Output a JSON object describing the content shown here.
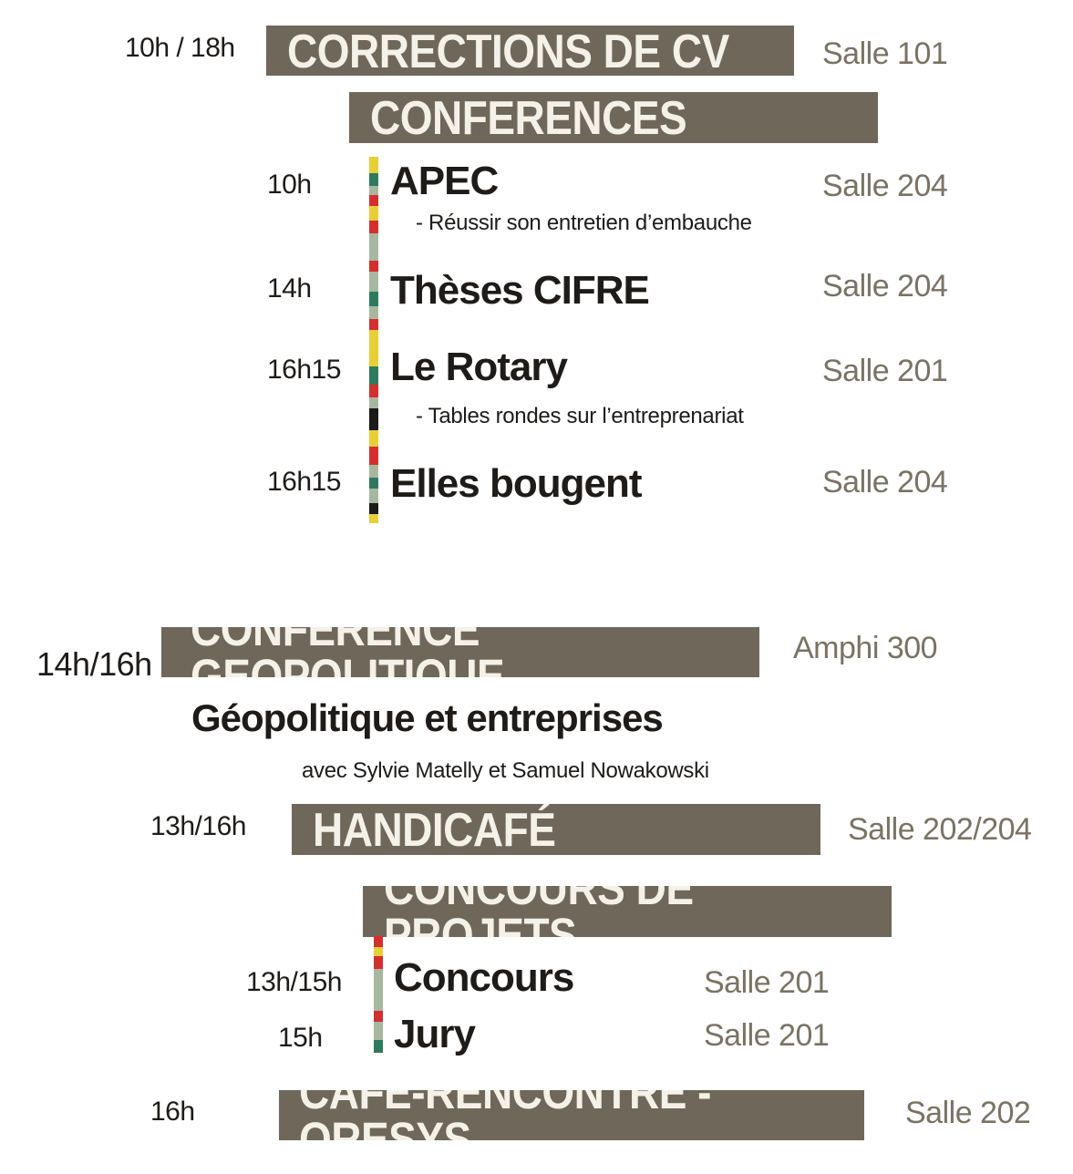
{
  "colors": {
    "band_bg": "#6f685a",
    "band_text": "#f4f1e8",
    "room_text": "#7a7264",
    "body_text": "#1e1b18",
    "stripe_yellow": "#e8cf38",
    "stripe_green": "#2f7a5e",
    "stripe_red": "#d42f2f",
    "stripe_sage": "#a8b8a0",
    "stripe_black": "#1a1a1a"
  },
  "cv": {
    "time": "10h / 18h",
    "title": "CORRECTIONS DE CV",
    "room": "Salle 101"
  },
  "conferences": {
    "title": "CONFERENCES",
    "items": [
      {
        "time": "10h",
        "title": "APEC",
        "subtitle": "- Réussir son entretien d’embauche",
        "room": "Salle 204"
      },
      {
        "time": "14h",
        "title": "Thèses CIFRE",
        "subtitle": "",
        "room": "Salle 204"
      },
      {
        "time": "16h15",
        "title": "Le Rotary",
        "subtitle": "- Tables rondes sur l’entreprenariat",
        "room": "Salle 201"
      },
      {
        "time": "16h15",
        "title": "Elles bougent",
        "subtitle": "",
        "room": "Salle 204"
      }
    ]
  },
  "geo": {
    "time": "14h/16h",
    "title": "CONFERENCE GEOPOLITIQUE",
    "room": "Amphi 300",
    "headline": "Géopolitique et entreprises",
    "speakers": "avec Sylvie Matelly et Samuel Nowakowski"
  },
  "handicafe": {
    "time": "13h/16h",
    "title": "HANDICAFÉ",
    "room": "Salle 202/204"
  },
  "concours": {
    "title": "CONCOURS DE PROJETS",
    "items": [
      {
        "time": "13h/15h",
        "title": "Concours",
        "room": "Salle 201"
      },
      {
        "time": "15h",
        "title": "Jury",
        "room": "Salle 201"
      }
    ]
  },
  "cafe": {
    "time": "16h",
    "title": "CAFÉ-RENCONTRE - ORESYS",
    "room": "Salle 202"
  }
}
